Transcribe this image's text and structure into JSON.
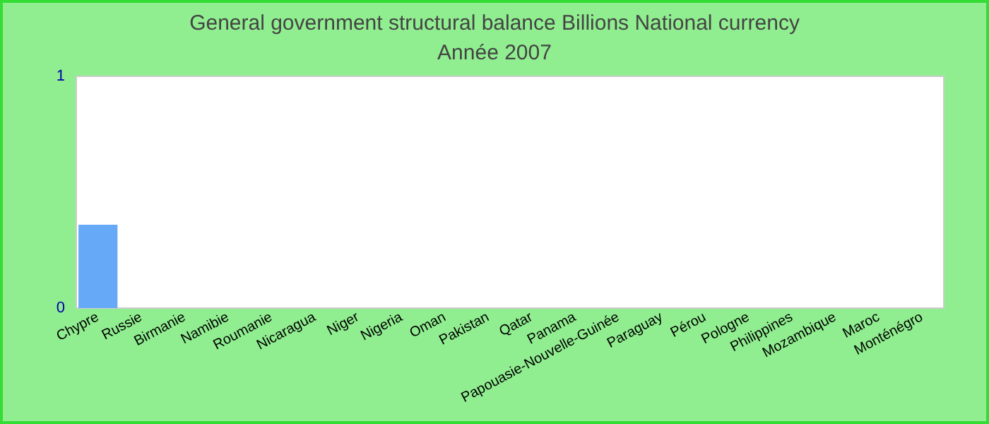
{
  "chart_data": {
    "type": "bar",
    "title": "General government structural balance Billions National currency",
    "subtitle": "Année 2007",
    "categories": [
      "Chypre",
      "Russie",
      "Birmanie",
      "Namibie",
      "Roumanie",
      "Nicaragua",
      "Niger",
      "Nigeria",
      "Oman",
      "Pakistan",
      "Qatar",
      "Panama",
      "Papouasie-Nouvelle-Guinée",
      "Paraguay",
      "Pérou",
      "Pologne",
      "Philippines",
      "Mozambique",
      "Maroc",
      "Monténégro"
    ],
    "values": [
      0.36,
      null,
      null,
      null,
      null,
      null,
      null,
      null,
      null,
      null,
      null,
      null,
      null,
      null,
      null,
      null,
      null,
      null,
      null,
      null
    ],
    "color": "#66aaf7",
    "ylim": [
      0,
      1
    ],
    "yticks": [
      0,
      1
    ]
  }
}
